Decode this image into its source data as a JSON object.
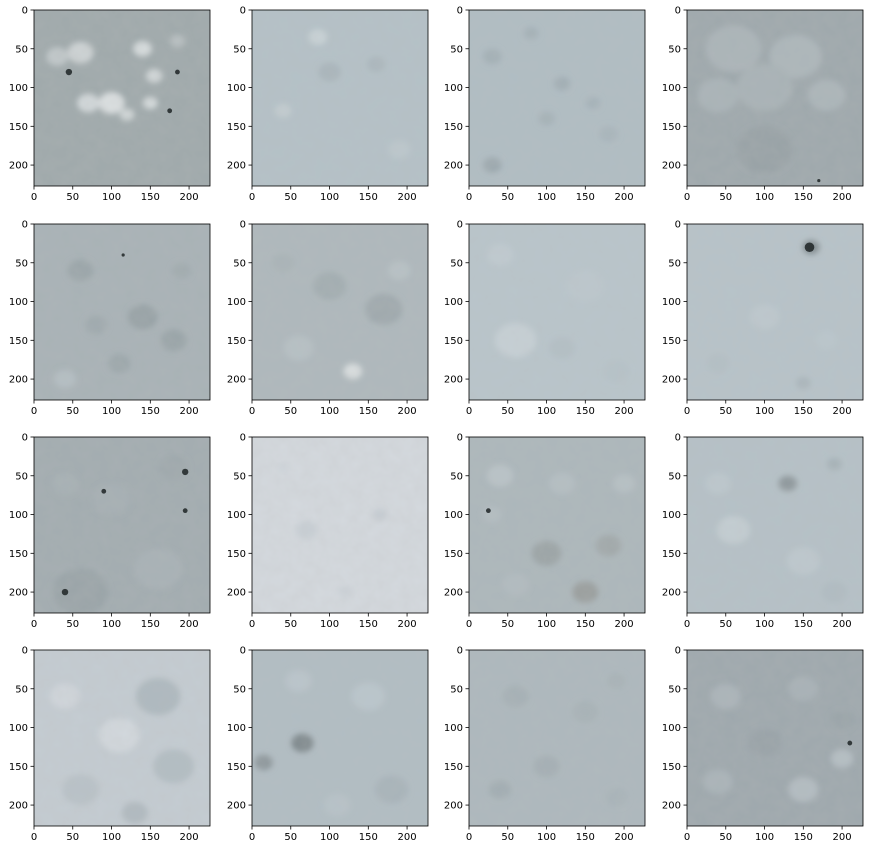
{
  "chart_data": {
    "type": "image-grid",
    "rows": 4,
    "cols": 4,
    "xlim": [
      0,
      227
    ],
    "ylim": [
      227,
      0
    ],
    "xticks": [
      0,
      50,
      100,
      150,
      200
    ],
    "yticks": [
      0,
      50,
      100,
      150,
      200
    ],
    "panels": [
      {
        "base": "#9fa9ab",
        "spots": [
          [
            60,
            55,
            14,
            "#cdd3d4"
          ],
          [
            140,
            50,
            10,
            "#d6dcdd"
          ],
          [
            70,
            120,
            12,
            "#d2d8da"
          ],
          [
            100,
            120,
            14,
            "#dbe0e1"
          ],
          [
            150,
            120,
            8,
            "#d4dadb"
          ],
          [
            155,
            85,
            9,
            "#d0d6d7"
          ],
          [
            120,
            135,
            8,
            "#cfd5d6"
          ],
          [
            30,
            60,
            12,
            "#c0c7c9"
          ],
          [
            185,
            40,
            8,
            "#b7bfc1"
          ]
        ],
        "dark": [
          [
            45,
            80,
            4
          ],
          [
            185,
            80,
            3
          ],
          [
            175,
            130,
            3
          ]
        ]
      },
      {
        "base": "#b4c1c7",
        "spots": [
          [
            85,
            35,
            10,
            "#c8d2d6"
          ],
          [
            100,
            80,
            12,
            "#a9b5bb"
          ],
          [
            40,
            130,
            9,
            "#c2ccd0"
          ],
          [
            160,
            70,
            10,
            "#abb7bd"
          ],
          [
            190,
            180,
            12,
            "#bcc7cc"
          ]
        ],
        "dark": []
      },
      {
        "base": "#b0bdc3",
        "spots": [
          [
            30,
            60,
            10,
            "#a3b0b6"
          ],
          [
            120,
            95,
            9,
            "#a2afb5"
          ],
          [
            100,
            140,
            9,
            "#a5b2b8"
          ],
          [
            30,
            200,
            10,
            "#9ba8ae"
          ],
          [
            180,
            160,
            10,
            "#a8b5bb"
          ],
          [
            160,
            120,
            8,
            "#a6b3b9"
          ],
          [
            80,
            30,
            8,
            "#a4b1b7"
          ]
        ],
        "dark": []
      },
      {
        "base": "#9ea8ac",
        "spots": [
          [
            60,
            50,
            30,
            "#aab4b8"
          ],
          [
            140,
            60,
            28,
            "#acb6ba"
          ],
          [
            100,
            100,
            30,
            "#a8b2b6"
          ],
          [
            40,
            110,
            22,
            "#a9b3b7"
          ],
          [
            180,
            110,
            20,
            "#abb5b9"
          ],
          [
            100,
            180,
            30,
            "#98a2a6"
          ]
        ],
        "dark": [
          [
            170,
            220,
            2
          ]
        ]
      },
      {
        "base": "#a8b2b6",
        "spots": [
          [
            60,
            60,
            14,
            "#9aa5a9"
          ],
          [
            140,
            120,
            16,
            "#97a2a6"
          ],
          [
            180,
            150,
            14,
            "#99a4a8"
          ],
          [
            40,
            200,
            12,
            "#b4bec2"
          ],
          [
            110,
            180,
            12,
            "#9ca7ab"
          ],
          [
            190,
            60,
            10,
            "#a0abaf"
          ],
          [
            80,
            130,
            12,
            "#9ea9ad"
          ]
        ],
        "dark": [
          [
            115,
            40,
            2
          ]
        ]
      },
      {
        "base": "#aeb8bc",
        "spots": [
          [
            100,
            80,
            18,
            "#a2adb1"
          ],
          [
            170,
            110,
            20,
            "#9fa9ad"
          ],
          [
            60,
            160,
            16,
            "#b6c0c4"
          ],
          [
            130,
            190,
            10,
            "#d9dedf"
          ],
          [
            190,
            60,
            12,
            "#b7c1c5"
          ],
          [
            40,
            50,
            12,
            "#a9b3b7"
          ]
        ],
        "dark": []
      },
      {
        "base": "#b9c5cb",
        "spots": [
          [
            60,
            150,
            22,
            "#c6d0d5"
          ],
          [
            150,
            80,
            20,
            "#bcc7cd"
          ],
          [
            120,
            160,
            14,
            "#b3bfc5"
          ],
          [
            40,
            40,
            14,
            "#bfcad0"
          ],
          [
            190,
            190,
            14,
            "#b6c2c8"
          ]
        ],
        "dark": []
      },
      {
        "base": "#b7c3c9",
        "spots": [
          [
            160,
            30,
            9,
            "#7f8a8e"
          ],
          [
            100,
            120,
            16,
            "#bdc8ce"
          ],
          [
            40,
            180,
            12,
            "#b3bfc5"
          ],
          [
            180,
            150,
            12,
            "#bac6cc"
          ],
          [
            150,
            205,
            8,
            "#aab6bc"
          ]
        ],
        "dark": [
          [
            158,
            30,
            6
          ]
        ]
      },
      {
        "base": "#a2acb0",
        "spots": [
          [
            60,
            200,
            30,
            "#9aa4a8"
          ],
          [
            160,
            170,
            26,
            "#a7b1b5"
          ],
          [
            100,
            80,
            20,
            "#a5afb3"
          ],
          [
            180,
            40,
            16,
            "#9ea8ac"
          ],
          [
            40,
            60,
            14,
            "#a6b0b4"
          ]
        ],
        "dark": [
          [
            195,
            45,
            4
          ],
          [
            90,
            70,
            3
          ],
          [
            195,
            95,
            3
          ],
          [
            40,
            200,
            4
          ]
        ]
      },
      {
        "base": "#d4d9de",
        "spots": [
          [
            70,
            120,
            12,
            "#c9d0d6"
          ],
          [
            165,
            100,
            8,
            "#c7ced4"
          ],
          [
            40,
            40,
            6,
            "#cfd5db"
          ],
          [
            120,
            200,
            8,
            "#ced4da"
          ]
        ],
        "dark": []
      },
      {
        "base": "#acb7bb",
        "spots": [
          [
            40,
            50,
            14,
            "#b9c3c7"
          ],
          [
            120,
            60,
            14,
            "#b4bec2"
          ],
          [
            100,
            150,
            16,
            "#9ba4a6"
          ],
          [
            180,
            140,
            14,
            "#a1a9aa"
          ],
          [
            150,
            200,
            14,
            "#9a9f9e"
          ],
          [
            60,
            190,
            14,
            "#b1bbbf"
          ],
          [
            200,
            60,
            12,
            "#b6c0c4"
          ],
          [
            30,
            100,
            10,
            "#b3bdc1"
          ]
        ],
        "dark": [
          [
            25,
            95,
            3
          ]
        ]
      },
      {
        "base": "#b5c1c7",
        "spots": [
          [
            130,
            60,
            10,
            "#8e989c"
          ],
          [
            60,
            120,
            18,
            "#c3cdd2"
          ],
          [
            150,
            160,
            18,
            "#bdc8ce"
          ],
          [
            40,
            60,
            14,
            "#bcc7cd"
          ],
          [
            190,
            200,
            14,
            "#b0bcc2"
          ],
          [
            190,
            35,
            8,
            "#a6b2b8"
          ]
        ],
        "dark": []
      },
      {
        "base": "#c4ccd2",
        "spots": [
          [
            160,
            60,
            24,
            "#aeb9bf"
          ],
          [
            180,
            150,
            22,
            "#b2bdc3"
          ],
          [
            60,
            180,
            20,
            "#b9c2c8"
          ],
          [
            110,
            110,
            22,
            "#d2d8dd"
          ],
          [
            40,
            60,
            16,
            "#d0d6db"
          ],
          [
            130,
            210,
            14,
            "#b0bac0"
          ]
        ],
        "dark": []
      },
      {
        "base": "#b1bdc3",
        "spots": [
          [
            65,
            120,
            12,
            "#7f898d"
          ],
          [
            15,
            145,
            10,
            "#8e989c"
          ],
          [
            150,
            60,
            18,
            "#bac6cc"
          ],
          [
            180,
            180,
            18,
            "#a8b4ba"
          ],
          [
            60,
            40,
            14,
            "#bac5cb"
          ],
          [
            110,
            200,
            14,
            "#b7c2c8"
          ]
        ],
        "dark": []
      },
      {
        "base": "#adb8bd",
        "spots": [
          [
            60,
            60,
            14,
            "#a5b0b5"
          ],
          [
            150,
            80,
            14,
            "#a7b2b7"
          ],
          [
            100,
            150,
            14,
            "#a4afb4"
          ],
          [
            40,
            180,
            12,
            "#a2adb2"
          ],
          [
            190,
            190,
            12,
            "#a9b4b9"
          ],
          [
            190,
            40,
            10,
            "#a7b2b7"
          ]
        ],
        "dark": []
      },
      {
        "base": "#9ea8ad",
        "spots": [
          [
            50,
            60,
            16,
            "#aab4b9"
          ],
          [
            150,
            50,
            16,
            "#a7b1b6"
          ],
          [
            100,
            120,
            18,
            "#98a2a7"
          ],
          [
            40,
            170,
            16,
            "#a9b3b8"
          ],
          [
            150,
            180,
            16,
            "#b2bcc1"
          ],
          [
            200,
            140,
            12,
            "#b4bec3"
          ],
          [
            200,
            90,
            12,
            "#9aa4a9"
          ]
        ],
        "dark": [
          [
            210,
            120,
            3
          ]
        ]
      }
    ]
  }
}
